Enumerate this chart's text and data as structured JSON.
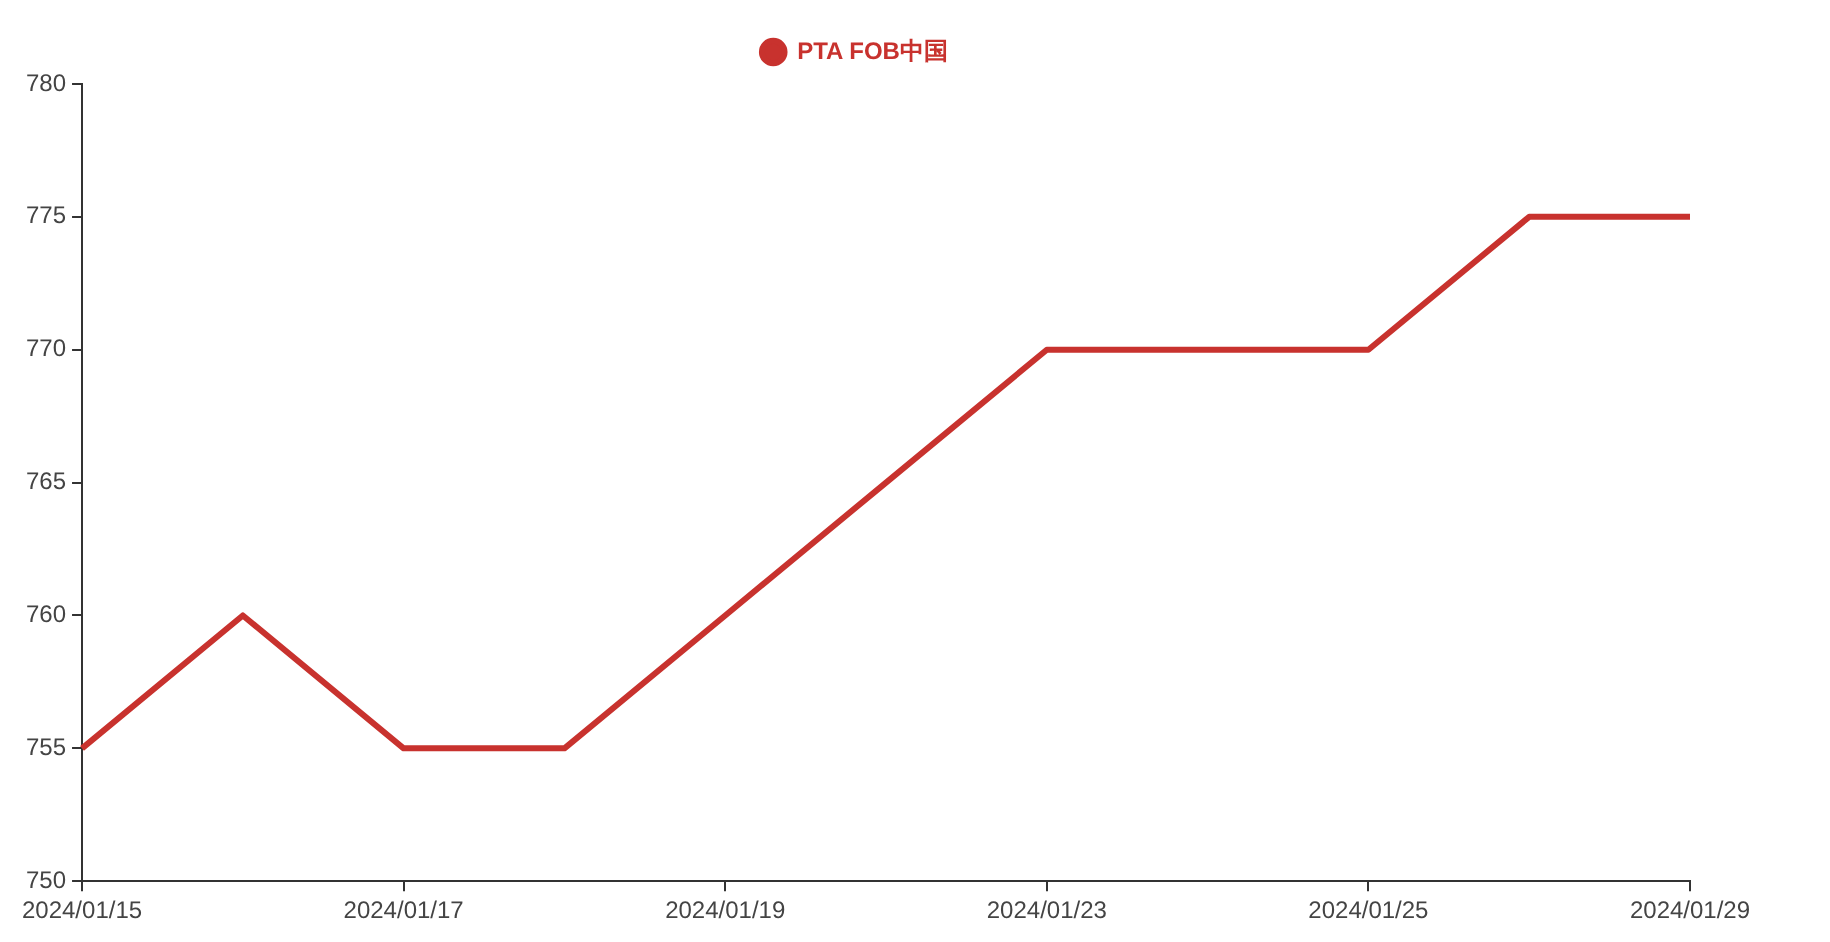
{
  "chart_data": {
    "type": "line",
    "categories": [
      "2024/01/15",
      null,
      "2024/01/17",
      null,
      "2024/01/19",
      null,
      "2024/01/23",
      null,
      "2024/01/25",
      null,
      "2024/01/29"
    ],
    "series": [
      {
        "name": "PTA FOB中国",
        "color": "#c8322e",
        "values": [
          755,
          760,
          755,
          755,
          760,
          765,
          770,
          770,
          770,
          775,
          775
        ]
      }
    ],
    "ylim": [
      750,
      780
    ],
    "yticks": [
      750,
      755,
      760,
      765,
      770,
      775,
      780
    ],
    "grid": false,
    "legend": "top",
    "marker": "none",
    "line_style": "solid"
  }
}
